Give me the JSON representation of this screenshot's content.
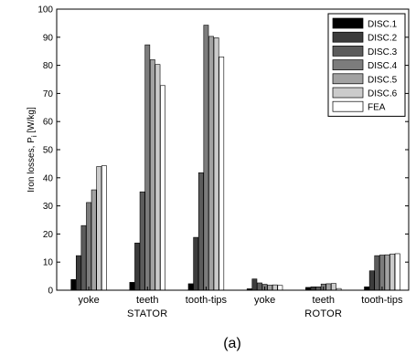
{
  "chart_data": {
    "type": "bar",
    "categories": [
      "yoke",
      "teeth",
      "tooth-tips",
      "yoke",
      "teeth",
      "tooth-tips"
    ],
    "groups": [
      {
        "label": "STATOR",
        "categories": [
          0,
          1,
          2
        ]
      },
      {
        "label": "ROTOR",
        "categories": [
          3,
          4,
          5
        ]
      }
    ],
    "series": [
      {
        "name": "DISC.1",
        "color": "#000000",
        "values": [
          3.8,
          2.8,
          2.3,
          0.5,
          1.0,
          1.2
        ]
      },
      {
        "name": "DISC.2",
        "color": "#3c3c3c",
        "values": [
          12.3,
          16.8,
          18.8,
          4.0,
          1.2,
          6.9
        ]
      },
      {
        "name": "DISC.3",
        "color": "#5c5c5c",
        "values": [
          23.0,
          35.0,
          41.8,
          2.6,
          1.2,
          12.3
        ]
      },
      {
        "name": "DISC.4",
        "color": "#7c7c7c",
        "values": [
          31.2,
          87.3,
          94.3,
          2.1,
          2.2,
          12.5
        ]
      },
      {
        "name": "DISC.5",
        "color": "#a2a2a2",
        "values": [
          35.7,
          82.0,
          90.3,
          1.8,
          2.3,
          12.6
        ]
      },
      {
        "name": "DISC.6",
        "color": "#cbcbcb",
        "values": [
          44.0,
          80.3,
          89.8,
          1.9,
          2.4,
          12.9
        ]
      },
      {
        "name": "FEA",
        "color": "#ffffff",
        "values": [
          44.3,
          72.8,
          83.0,
          1.7,
          0.6,
          13.0
        ]
      }
    ],
    "title": "",
    "ylabel": "Iron losses, P_i [W/kg]",
    "ylabel_main": "Iron losses, P",
    "ylabel_sub": "i",
    "ylabel_unit": " [W/kg]",
    "ylim": [
      0,
      100
    ],
    "yticks": [
      0,
      10,
      20,
      30,
      40,
      50,
      60,
      70,
      80,
      90,
      100
    ],
    "grid": false,
    "legend": "top-right",
    "caption": "(a)"
  }
}
